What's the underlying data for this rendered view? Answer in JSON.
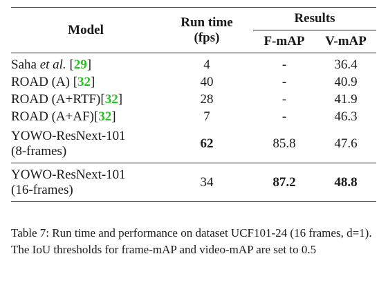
{
  "headers": {
    "model": "Model",
    "runtime_line1": "Run time",
    "runtime_line2": "(fps)",
    "results": "Results",
    "fmap": "F-mAP",
    "vmap": "V-mAP"
  },
  "rows": [
    {
      "model_pre": "Saha ",
      "model_em": "et al.",
      "model_post": " [",
      "cite": "29",
      "model_end": "]",
      "fps": "4",
      "fmap": "-",
      "vmap": "36.4"
    },
    {
      "model_pre": "ROAD (A) [",
      "cite": "32",
      "model_end": "]",
      "fps": "40",
      "fmap": "-",
      "vmap": "40.9"
    },
    {
      "model_pre": "ROAD (A+RTF)[",
      "cite": "32",
      "model_end": "]",
      "fps": "28",
      "fmap": "-",
      "vmap": "41.9"
    },
    {
      "model_pre": "ROAD (A+AF)[",
      "cite": "32",
      "model_end": "]",
      "fps": "7",
      "fmap": "-",
      "vmap": "46.3"
    },
    {
      "model_line1": "YOWO-ResNext-101",
      "model_line2": "(8-frames)",
      "fps": "62",
      "fmap": "85.8",
      "vmap": "47.6"
    },
    {
      "model_line1": "YOWO-ResNext-101",
      "model_line2": "(16-frames)",
      "fps": "34",
      "fmap": "87.2",
      "vmap": "48.8"
    }
  ],
  "caption": "Table 7: Run time and performance on dataset UCF101-24 (16 frames, d=1). The IoU thresholds for frame-mAP and video-mAP are set to 0.5"
}
